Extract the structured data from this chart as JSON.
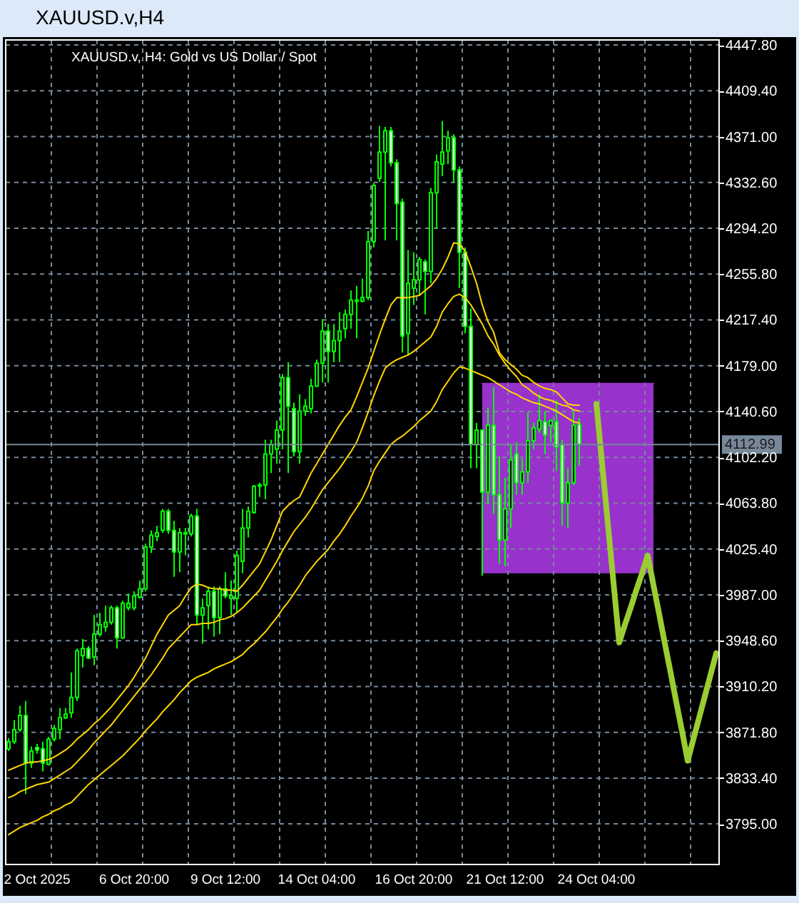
{
  "chart_data": {
    "type": "candlestick",
    "title": "XAUUSD.v,H4",
    "subtitle": "XAUUSD.v, H4: Gold vs US Dollar / Spot",
    "categories": [
      null,
      null,
      null,
      null,
      null,
      "2 Oct 2025",
      null,
      null,
      null,
      null,
      null,
      null,
      null,
      null,
      null,
      null,
      null,
      null,
      null,
      null,
      null,
      null,
      "6 Oct 20:00",
      null,
      null,
      null,
      null,
      null,
      null,
      null,
      null,
      null,
      null,
      null,
      null,
      null,
      null,
      null,
      "9 Oct 12:00",
      null,
      null,
      null,
      null,
      null,
      null,
      null,
      null,
      null,
      null,
      null,
      null,
      null,
      null,
      null,
      "14 Oct 04:00",
      null,
      null,
      null,
      null,
      null,
      null,
      null,
      null,
      null,
      null,
      null,
      null,
      null,
      null,
      null,
      null,
      "16 Oct 20:00",
      null,
      null,
      null,
      null,
      null,
      null,
      null,
      null,
      null,
      null,
      null,
      null,
      null,
      null,
      null,
      "21 Oct 12:00",
      null,
      null,
      null,
      null,
      null,
      null,
      null,
      null,
      null,
      null,
      null,
      null,
      null,
      null,
      null,
      "24 Oct 04:00",
      null,
      null,
      null,
      null,
      null,
      null,
      null,
      null,
      null,
      null,
      null,
      null,
      null,
      null,
      null,
      null,
      null,
      null,
      null,
      null,
      null
    ],
    "ohlc": [
      [
        3858,
        3867,
        3856,
        3864
      ],
      [
        3864,
        3882,
        3862,
        3874
      ],
      [
        3874,
        3894,
        3872,
        3886
      ],
      [
        3886,
        3898,
        3820,
        3846
      ],
      [
        3846,
        3860,
        3842,
        3856
      ],
      [
        3859,
        3862,
        3854,
        3857
      ],
      [
        3858,
        3864,
        3839,
        3846
      ],
      [
        3845,
        3868,
        3844,
        3866
      ],
      [
        3866,
        3878,
        3864,
        3875
      ],
      [
        3874,
        3892,
        3866,
        3884
      ],
      [
        3884,
        3892,
        3883,
        3887
      ],
      [
        3888,
        3922,
        3884,
        3901
      ],
      [
        3901,
        3942,
        3898,
        3940
      ],
      [
        3936,
        3950,
        3926,
        3942
      ],
      [
        3942,
        3944,
        3933,
        3934
      ],
      [
        3935,
        3970,
        3928,
        3954
      ],
      [
        3954,
        3972,
        3952,
        3962
      ],
      [
        3960,
        3978,
        3956,
        3964
      ],
      [
        3964,
        3978,
        3962,
        3976
      ],
      [
        3976,
        3978,
        3942,
        3951
      ],
      [
        3951,
        3982,
        3950,
        3980
      ],
      [
        3976,
        3988,
        3974,
        3980
      ],
      [
        3976,
        3990,
        3974,
        3986
      ],
      [
        3985,
        3999,
        3984,
        3992
      ],
      [
        3992,
        4030,
        3990,
        4027
      ],
      [
        4027,
        4041,
        4022,
        4037
      ],
      [
        4036,
        4045,
        4032,
        4039
      ],
      [
        4041,
        4059,
        4039,
        4057
      ],
      [
        4057,
        4059,
        4038,
        4041
      ],
      [
        4041,
        4049,
        4002,
        4023
      ],
      [
        4023,
        4043,
        4006,
        4039
      ],
      [
        4038,
        4043,
        4020,
        4039
      ],
      [
        4038,
        4055,
        4036,
        4053
      ],
      [
        4053,
        4059,
        3962,
        3970
      ],
      [
        3970,
        3984,
        3946,
        3976
      ],
      [
        3978,
        3994,
        3958,
        3990
      ],
      [
        3990,
        3994,
        3952,
        3968
      ],
      [
        3968,
        3994,
        3954,
        3992
      ],
      [
        3992,
        4006,
        3984,
        3986
      ],
      [
        3984,
        3999,
        3970,
        3986
      ],
      [
        3984,
        4024,
        3972,
        4020
      ],
      [
        4015,
        4059,
        4005,
        4043
      ],
      [
        4043,
        4061,
        4035,
        4057
      ],
      [
        4056,
        4079,
        4055,
        4078
      ],
      [
        4078,
        4081,
        4069,
        4079
      ],
      [
        4079,
        4117,
        4067,
        4105
      ],
      [
        4105,
        4117,
        4089,
        4113
      ],
      [
        4109,
        4133,
        4097,
        4125
      ],
      [
        4125,
        4172,
        4109,
        4169
      ],
      [
        4169,
        4182,
        4089,
        4145
      ],
      [
        4143,
        4148,
        4103,
        4107
      ],
      [
        4107,
        4155,
        4097,
        4141
      ],
      [
        4141,
        4151,
        4137,
        4145
      ],
      [
        4143,
        4168,
        4139,
        4162
      ],
      [
        4162,
        4184,
        4161,
        4181
      ],
      [
        4181,
        4218,
        4165,
        4208
      ],
      [
        4208,
        4214,
        4165,
        4191
      ],
      [
        4191,
        4214,
        4182,
        4200
      ],
      [
        4200,
        4224,
        4182,
        4208
      ],
      [
        4210,
        4226,
        4202,
        4222
      ],
      [
        4222,
        4242,
        4210,
        4234
      ],
      [
        4233,
        4246,
        4202,
        4234
      ],
      [
        4233,
        4252,
        4232,
        4236
      ],
      [
        4236,
        4292,
        4234,
        4283
      ],
      [
        4283,
        4332,
        4278,
        4330
      ],
      [
        4336,
        4380,
        4333,
        4358
      ],
      [
        4358,
        4379,
        4284,
        4376
      ],
      [
        4376,
        4379,
        4346,
        4349
      ],
      [
        4349,
        4352,
        4284,
        4315
      ],
      [
        4316,
        4319,
        4190,
        4204
      ],
      [
        4206,
        4276,
        4188,
        4248
      ],
      [
        4244,
        4274,
        4230,
        4251
      ],
      [
        4251,
        4270,
        4238,
        4268
      ],
      [
        4266,
        4268,
        4222,
        4258
      ],
      [
        4258,
        4328,
        4248,
        4324
      ],
      [
        4324,
        4356,
        4294,
        4350
      ],
      [
        4348,
        4384,
        4338,
        4358
      ],
      [
        4359,
        4376,
        4348,
        4370
      ],
      [
        4370,
        4373,
        4333,
        4343
      ],
      [
        4343,
        4346,
        4244,
        4274
      ],
      [
        4274,
        4278,
        4206,
        4212
      ],
      [
        4212,
        4227,
        4093,
        4113
      ],
      [
        4113,
        4131,
        4093,
        4125
      ],
      [
        4125,
        4125,
        4003,
        4073
      ],
      [
        4073,
        4144,
        4063,
        4129
      ],
      [
        4129,
        4161,
        4055,
        4071
      ],
      [
        4071,
        4103,
        4013,
        4033
      ],
      [
        4033,
        4085,
        4011,
        4059
      ],
      [
        4059,
        4113,
        4043,
        4100
      ],
      [
        4105,
        4115,
        4071,
        4081
      ],
      [
        4081,
        4101,
        4071,
        4090
      ],
      [
        4090,
        4140,
        4081,
        4116
      ],
      [
        4116,
        4131,
        4109,
        4127
      ],
      [
        4126,
        4155,
        4123,
        4133
      ],
      [
        4132,
        4141,
        4105,
        4121
      ],
      [
        4129,
        4134,
        4115,
        4133
      ],
      [
        4132,
        4150,
        4091,
        4111
      ],
      [
        4113,
        4117,
        4045,
        4064
      ],
      [
        4064,
        4093,
        4043,
        4081
      ],
      [
        4081,
        4140,
        4079,
        4129
      ],
      [
        4130,
        4135,
        4095,
        4113
      ],
      null,
      null,
      null,
      null,
      null,
      null,
      null,
      null,
      null,
      null,
      null,
      null,
      null,
      null,
      null,
      null,
      null,
      null,
      null,
      null,
      null,
      null,
      null,
      null
    ],
    "colors": [
      "#000000",
      "#000000",
      "#000000",
      "#ffffff",
      "#000000",
      "#ffffff",
      "#ffffff",
      "#000000",
      "#000000",
      "#000000",
      "#000000",
      "#000000",
      "#000000",
      "#000000",
      "#ffffff",
      "#000000",
      "#000000",
      "#000000",
      "#000000",
      "#ffffff",
      "#000000",
      "#000000",
      "#000000",
      "#000000",
      "#000000",
      "#000000",
      "#000000",
      "#000000",
      "#ffffff",
      "#ffffff",
      "#000000",
      "#000000",
      "#000000",
      "#ffffff",
      "#000000",
      "#000000",
      "#ffffff",
      "#000000",
      "#ffffff",
      "#000000",
      "#000000",
      "#000000",
      "#000000",
      "#000000",
      "#000000",
      "#000000",
      "#000000",
      "#000000",
      "#000000",
      "#ffffff",
      "#ffffff",
      "#000000",
      "#000000",
      "#000000",
      "#000000",
      "#000000",
      "#ffffff",
      "#000000",
      "#000000",
      "#000000",
      "#000000",
      "#000000",
      "#000000",
      "#000000",
      "#000000",
      "#000000",
      "#000000",
      "#ffffff",
      "#ffffff",
      "#ffffff",
      "#000000",
      "#000000",
      "#000000",
      "#ffffff",
      "#000000",
      "#000000",
      "#000000",
      "#000000",
      "#ffffff",
      "#ffffff",
      "#ffffff",
      "#ffffff",
      "#000000",
      "#ffffff",
      "#000000",
      "#ffffff",
      "#ffffff",
      "#000000",
      "#000000",
      "#ffffff",
      "#000000",
      "#000000",
      "#000000",
      "#000000",
      "#ffffff",
      "#000000",
      "#ffffff",
      "#ffffff",
      "#000000",
      "#000000",
      "#ffffff",
      null,
      null,
      null,
      null,
      null,
      null,
      null,
      null,
      null,
      null,
      null,
      null,
      null,
      null,
      null,
      null,
      null,
      null,
      null,
      null,
      null,
      null,
      null,
      null
    ],
    "series": [
      {
        "type": "line",
        "color": "#9932cc",
        "values": [
          null,
          null,
          null,
          null,
          null,
          null,
          null,
          null,
          null,
          null,
          null,
          null,
          null,
          null,
          null,
          null,
          null,
          null,
          null,
          null,
          null,
          null,
          null,
          null,
          null,
          null,
          null,
          null,
          null,
          null,
          null,
          null,
          null,
          null,
          null,
          null,
          null,
          null,
          null,
          null,
          null,
          null,
          null,
          null,
          null,
          null,
          null,
          null,
          null,
          null,
          null,
          null,
          null,
          null,
          null,
          null,
          null,
          null,
          null,
          null,
          null,
          null,
          null,
          null,
          null,
          null,
          null,
          null,
          null,
          null,
          null,
          null,
          null,
          null,
          null,
          null,
          null,
          null,
          null,
          null,
          null,
          null,
          null,
          4164,
          4164,
          4164,
          4164,
          4164,
          4164,
          4164,
          4164,
          4164,
          4164,
          4164,
          4164,
          4164,
          4164,
          4164,
          4164,
          4164,
          4164,
          4164,
          4164,
          4164,
          4164,
          4164,
          4164,
          4164,
          4164,
          4164,
          4164,
          4164,
          4164,
          4164,
          null,
          null,
          null,
          null,
          null,
          null,
          null,
          null,
          null,
          null,
          null
        ],
        "upper": [
          null,
          null,
          null,
          null,
          null,
          null,
          null,
          null,
          null,
          null,
          null,
          null,
          null,
          null,
          null,
          null,
          null,
          null,
          null,
          null,
          null,
          null,
          null,
          null,
          null,
          null,
          null,
          null,
          null,
          null,
          null,
          null,
          null,
          null,
          null,
          null,
          null,
          null,
          null,
          null,
          null,
          null,
          null,
          null,
          null,
          null,
          null,
          null,
          null,
          null,
          null,
          null,
          null,
          null,
          null,
          null,
          null,
          null,
          null,
          null,
          null,
          null,
          null,
          null,
          null,
          null,
          null,
          null,
          null,
          null,
          null,
          null,
          null,
          null,
          null,
          null,
          null,
          null,
          null,
          null,
          null,
          null,
          null,
          4164,
          4164,
          4164,
          4164,
          4164,
          4164,
          4164,
          4164,
          4164,
          4164,
          4164,
          4164,
          4164,
          4164,
          4164,
          4164,
          4164,
          4164,
          4164,
          4164,
          4164,
          4164,
          4164,
          4164,
          4164,
          4164,
          4164,
          4164,
          4164,
          4164,
          4164,
          null,
          null,
          null,
          null,
          null,
          null,
          null,
          null,
          null,
          null,
          null
        ],
        "lower": [
          null,
          null,
          null,
          null,
          null,
          null,
          null,
          null,
          null,
          null,
          null,
          null,
          null,
          null,
          null,
          null,
          null,
          null,
          null,
          null,
          null,
          null,
          null,
          null,
          null,
          null,
          null,
          null,
          null,
          null,
          null,
          null,
          null,
          null,
          null,
          null,
          null,
          null,
          null,
          null,
          null,
          null,
          null,
          null,
          null,
          null,
          null,
          null,
          null,
          null,
          null,
          null,
          null,
          null,
          null,
          null,
          null,
          null,
          null,
          null,
          null,
          null,
          null,
          null,
          null,
          null,
          null,
          null,
          null,
          null,
          null,
          null,
          null,
          null,
          null,
          null,
          null,
          null,
          null,
          null,
          null,
          null,
          null,
          4005,
          4005,
          4005,
          4005,
          4005,
          4005,
          4005,
          4005,
          4005,
          4005,
          4005,
          4005,
          4005,
          4005,
          4005,
          4005,
          4005,
          4005,
          4005,
          4005,
          4005,
          4005,
          4005,
          4005,
          4005,
          4005,
          4005,
          4005,
          4005,
          4005,
          4005,
          null,
          null,
          null,
          null,
          null,
          null,
          null,
          null,
          null,
          null,
          null
        ]
      },
      {
        "type": "line",
        "color": "#ffd700",
        "values": [
          3840,
          3842,
          3844,
          3846,
          3847,
          3847,
          3848,
          3849,
          3851,
          3854,
          3857,
          3861,
          3866,
          3870,
          3874,
          3879,
          3883,
          3888,
          3893,
          3899,
          3905,
          3911,
          3918,
          3926,
          3934,
          3944,
          3954,
          3962,
          3970,
          3974,
          3978,
          3986,
          3993,
          3996,
          3995,
          3993,
          3992,
          3992,
          3991,
          3991,
          3990,
          3995,
          4001,
          4007,
          4013,
          4023,
          4033,
          4045,
          4057,
          4062,
          4066,
          4069,
          4079,
          4089,
          4097,
          4105,
          4113,
          4121,
          4129,
          4136,
          4142,
          4153,
          4165,
          4177,
          4191,
          4205,
          4218,
          4230,
          4236,
          4236,
          4236,
          4237,
          4238,
          4242,
          4246,
          4252,
          4260,
          4270,
          4282,
          4281,
          4275,
          4262,
          4248,
          4230,
          4216,
          4207,
          4190,
          4184,
          4180,
          4176,
          4171,
          4169,
          4165,
          4162,
          4160,
          4159,
          4157,
          4152,
          4147,
          4146,
          4146,
          null,
          null,
          null,
          null,
          null,
          null,
          null,
          null,
          null,
          null,
          null,
          null,
          null,
          null,
          null,
          null,
          null,
          null,
          null,
          null,
          null,
          null,
          null,
          null
        ]
      },
      {
        "type": "line",
        "color": "#ffd700",
        "values": [
          3817,
          3819,
          3822,
          3824,
          3826,
          3828,
          3829,
          3830,
          3833,
          3836,
          3839,
          3842,
          3847,
          3852,
          3857,
          3863,
          3868,
          3873,
          3878,
          3884,
          3890,
          3896,
          3902,
          3908,
          3914,
          3920,
          3927,
          3934,
          3942,
          3947,
          3952,
          3957,
          3962,
          3962,
          3963,
          3963,
          3964,
          3966,
          3967,
          3969,
          3972,
          3976,
          3981,
          3986,
          3991,
          3999,
          4007,
          4015,
          4024,
          4032,
          4040,
          4046,
          4052,
          4059,
          4067,
          4075,
          4081,
          4087,
          4093,
          4100,
          4107,
          4115,
          4127,
          4140,
          4154,
          4166,
          4177,
          4181,
          4184,
          4186,
          4188,
          4191,
          4195,
          4199,
          4203,
          4212,
          4224,
          4231,
          4237,
          4239,
          4236,
          4230,
          4222,
          4214,
          4204,
          4197,
          4188,
          4181,
          4175,
          4170,
          4163,
          4160,
          4156,
          4153,
          4151,
          4150,
          4148,
          4146,
          4145,
          4142,
          4141,
          null,
          null,
          null,
          null,
          null,
          null,
          null,
          null,
          null,
          null,
          null,
          null,
          null,
          null,
          null,
          null,
          null,
          null,
          null,
          null,
          null,
          null,
          null,
          null
        ]
      },
      {
        "type": "line",
        "color": "#ffd700",
        "values": [
          3786,
          3789,
          3792,
          3794,
          3796,
          3798,
          3801,
          3803,
          3806,
          3808,
          3811,
          3813,
          3818,
          3823,
          3828,
          3832,
          3836,
          3840,
          3844,
          3848,
          3852,
          3857,
          3862,
          3867,
          3873,
          3878,
          3883,
          3889,
          3894,
          3899,
          3905,
          3910,
          3915,
          3918,
          3920,
          3922,
          3925,
          3927,
          3929,
          3931,
          3934,
          3937,
          3942,
          3946,
          3951,
          3956,
          3962,
          3968,
          3975,
          3981,
          3988,
          3995,
          4003,
          4009,
          4015,
          4020,
          4025,
          4032,
          4038,
          4045,
          4053,
          4060,
          4068,
          4078,
          4091,
          4099,
          4106,
          4113,
          4117,
          4120,
          4124,
          4128,
          4133,
          4137,
          4141,
          4149,
          4159,
          4166,
          4173,
          4178,
          4177,
          4175,
          4173,
          4171,
          4169,
          4166,
          4163,
          4160,
          4157,
          4155,
          4152,
          4150,
          4148,
          4147,
          4145,
          4143,
          4141,
          4138,
          4135,
          4132,
          4131,
          null,
          null,
          null,
          null,
          null,
          null,
          null,
          null,
          null,
          null,
          null,
          null,
          null,
          null,
          null,
          null,
          null,
          null,
          null,
          null,
          null,
          null,
          null,
          null
        ]
      },
      {
        "type": "line",
        "color": "#9acd32",
        "values": [
          null,
          null,
          null,
          null,
          null,
          null,
          null,
          null,
          null,
          null,
          null,
          null,
          null,
          null,
          null,
          null,
          null,
          null,
          null,
          null,
          null,
          null,
          null,
          null,
          null,
          null,
          null,
          null,
          null,
          null,
          null,
          null,
          null,
          null,
          null,
          null,
          null,
          null,
          null,
          null,
          null,
          null,
          null,
          null,
          null,
          null,
          null,
          null,
          null,
          null,
          null,
          null,
          null,
          null,
          null,
          null,
          null,
          null,
          null,
          null,
          null,
          null,
          null,
          null,
          null,
          null,
          null,
          null,
          null,
          null,
          null,
          null,
          null,
          null,
          null,
          null,
          null,
          null,
          null,
          null,
          null,
          null,
          null,
          null,
          null,
          null,
          null,
          null,
          null,
          null,
          null,
          null,
          null,
          null,
          null,
          null,
          null,
          null,
          null,
          null,
          null,
          null,
          null,
          4147,
          4097,
          4047,
          3997,
          3947,
          3962,
          3976,
          3991,
          4005,
          4020,
          3995,
          3971,
          3946,
          3922,
          3897,
          3873,
          3848,
          3866,
          3884,
          3902,
          3920,
          3938
        ]
      }
    ],
    "ref_lines": [
      {
        "axis": "y",
        "value": 4112.99,
        "label": "4112.99",
        "color": "#778899"
      }
    ],
    "ylim": [
      3761,
      4452
    ],
    "yticks": [
      {
        "value": 4447.8,
        "label": "4447.80"
      },
      {
        "value": 4409.4,
        "label": "4409.40"
      },
      {
        "value": 4371,
        "label": "4371.00"
      },
      {
        "value": 4332.6,
        "label": "4332.60"
      },
      {
        "value": 4294.2,
        "label": "4294.20"
      },
      {
        "value": 4255.8,
        "label": "4255.80"
      },
      {
        "value": 4217.4,
        "label": "4217.40"
      },
      {
        "value": 4179,
        "label": "4179.00"
      },
      {
        "value": 4140.6,
        "label": "4140.60"
      },
      {
        "value": 4102.2,
        "label": "4102.20"
      },
      {
        "value": 4063.8,
        "label": "4063.80"
      },
      {
        "value": 4025.4,
        "label": "4025.40"
      },
      {
        "value": 3987,
        "label": "3987.00"
      },
      {
        "value": 3948.6,
        "label": "3948.60"
      },
      {
        "value": 3910.2,
        "label": "3910.20"
      },
      {
        "value": 3871.8,
        "label": "3871.80"
      },
      {
        "value": 3833.4,
        "label": "3833.40"
      },
      {
        "value": 3795,
        "label": "3795.00"
      }
    ],
    "grid": true
  }
}
